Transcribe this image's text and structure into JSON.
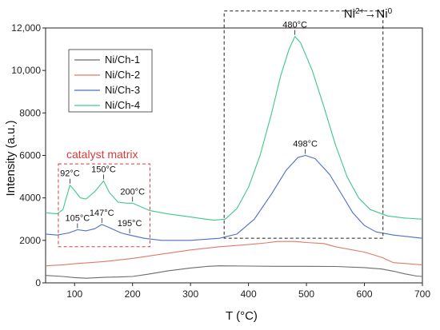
{
  "chart_data": {
    "type": "line",
    "title": "",
    "xlabel": "T (°C)",
    "ylabel": "Intensity (a.u.)",
    "xlim": [
      50,
      700
    ],
    "ylim": [
      0,
      12000
    ],
    "x_ticks": [
      100,
      200,
      300,
      400,
      500,
      600,
      700
    ],
    "x_tick_labels": [
      "100",
      "200",
      "300",
      "400",
      "500",
      "600",
      "700"
    ],
    "y_ticks": [
      0,
      2000,
      4000,
      6000,
      8000,
      10000,
      12000
    ],
    "y_tick_labels": [
      "0",
      "2000",
      "4000",
      "6000",
      "8000",
      "10,000",
      "12,000"
    ],
    "grid": false,
    "legend": {
      "placement": "top-left"
    },
    "series": [
      {
        "name": "Ni/Ch-1",
        "color": "#6b6b6b",
        "points": [
          [
            50,
            350
          ],
          [
            80,
            300
          ],
          [
            100,
            250
          ],
          [
            120,
            220
          ],
          [
            150,
            260
          ],
          [
            180,
            280
          ],
          [
            200,
            300
          ],
          [
            230,
            420
          ],
          [
            260,
            560
          ],
          [
            300,
            700
          ],
          [
            330,
            780
          ],
          [
            350,
            800
          ],
          [
            400,
            790
          ],
          [
            450,
            780
          ],
          [
            500,
            780
          ],
          [
            550,
            770
          ],
          [
            600,
            720
          ],
          [
            630,
            650
          ],
          [
            650,
            550
          ],
          [
            670,
            420
          ],
          [
            690,
            320
          ],
          [
            700,
            300
          ]
        ]
      },
      {
        "name": "Ni/Ch-2",
        "color": "#e07a64",
        "points": [
          [
            50,
            800
          ],
          [
            80,
            850
          ],
          [
            100,
            900
          ],
          [
            150,
            1000
          ],
          [
            200,
            1150
          ],
          [
            250,
            1350
          ],
          [
            300,
            1550
          ],
          [
            350,
            1700
          ],
          [
            400,
            1800
          ],
          [
            430,
            1880
          ],
          [
            450,
            1950
          ],
          [
            480,
            1950
          ],
          [
            500,
            1900
          ],
          [
            530,
            1850
          ],
          [
            550,
            1700
          ],
          [
            600,
            1450
          ],
          [
            630,
            1200
          ],
          [
            650,
            950
          ],
          [
            700,
            850
          ]
        ]
      },
      {
        "name": "Ni/Ch-3",
        "color": "#4a6fc8",
        "points": [
          [
            50,
            2300
          ],
          [
            70,
            2250
          ],
          [
            90,
            2350
          ],
          [
            105,
            2500
          ],
          [
            120,
            2450
          ],
          [
            135,
            2550
          ],
          [
            147,
            2750
          ],
          [
            160,
            2600
          ],
          [
            180,
            2350
          ],
          [
            195,
            2250
          ],
          [
            220,
            2100
          ],
          [
            250,
            2000
          ],
          [
            300,
            2000
          ],
          [
            350,
            2100
          ],
          [
            380,
            2300
          ],
          [
            410,
            3000
          ],
          [
            440,
            4200
          ],
          [
            465,
            5300
          ],
          [
            485,
            5900
          ],
          [
            498,
            6000
          ],
          [
            515,
            5850
          ],
          [
            540,
            5100
          ],
          [
            560,
            4200
          ],
          [
            580,
            3300
          ],
          [
            600,
            2700
          ],
          [
            620,
            2400
          ],
          [
            650,
            2250
          ],
          [
            700,
            2100
          ]
        ]
      },
      {
        "name": "Ni/Ch-4",
        "color": "#3cc98a",
        "points": [
          [
            50,
            3300
          ],
          [
            70,
            3250
          ],
          [
            80,
            3450
          ],
          [
            92,
            4600
          ],
          [
            100,
            4350
          ],
          [
            110,
            4000
          ],
          [
            120,
            3950
          ],
          [
            135,
            4300
          ],
          [
            150,
            4800
          ],
          [
            160,
            4250
          ],
          [
            175,
            3800
          ],
          [
            190,
            3750
          ],
          [
            200,
            3750
          ],
          [
            230,
            3400
          ],
          [
            260,
            3250
          ],
          [
            300,
            3100
          ],
          [
            340,
            2950
          ],
          [
            360,
            3000
          ],
          [
            380,
            3500
          ],
          [
            400,
            4500
          ],
          [
            420,
            6000
          ],
          [
            440,
            8000
          ],
          [
            455,
            9700
          ],
          [
            470,
            11000
          ],
          [
            480,
            11600
          ],
          [
            490,
            11300
          ],
          [
            510,
            10000
          ],
          [
            530,
            8300
          ],
          [
            550,
            6500
          ],
          [
            570,
            5000
          ],
          [
            590,
            4000
          ],
          [
            610,
            3450
          ],
          [
            640,
            3150
          ],
          [
            670,
            3050
          ],
          [
            700,
            3000
          ]
        ]
      }
    ],
    "annotations": [
      {
        "text": "92°C",
        "x": 92,
        "y": 4600
      },
      {
        "text": "150°C",
        "x": 150,
        "y": 4800
      },
      {
        "text": "200°C",
        "x": 200,
        "y": 3750
      },
      {
        "text": "105°C",
        "x": 105,
        "y": 2500
      },
      {
        "text": "147°C",
        "x": 147,
        "y": 2750
      },
      {
        "text": "195°C",
        "x": 195,
        "y": 2250
      },
      {
        "text": "480°C",
        "x": 480,
        "y": 11600
      },
      {
        "text": "498°C",
        "x": 498,
        "y": 6000
      }
    ],
    "regions": [
      {
        "label": "catalyst matrix",
        "color": "#d83a3a",
        "x_range": [
          72,
          230
        ],
        "y_range": [
          1700,
          5600
        ]
      },
      {
        "label_prefix": "Ni",
        "label_sup1": "2+",
        "label_arrow": "→Ni",
        "label_sup2": "0",
        "color": "#222222",
        "x_range": [
          358,
          632
        ],
        "y_range": [
          2100,
          12800
        ]
      }
    ]
  }
}
